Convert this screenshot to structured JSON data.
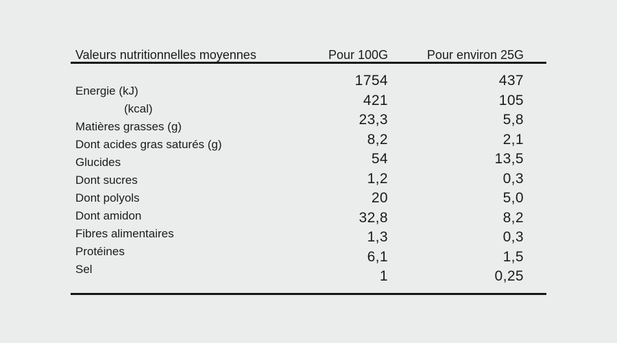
{
  "table": {
    "title": "Valeurs nutritionnelles moyennes",
    "header": {
      "label": "Valeurs nutritionnelles moyennes",
      "col_per_100": "Pour 100G",
      "col_per_25": "Pour environ 25G"
    },
    "rows": [
      {
        "label": "Energie (kJ)",
        "indent": false,
        "per_100": "1754",
        "per_25": "437"
      },
      {
        "label": "(kcal)",
        "indent": true,
        "per_100": "421",
        "per_25": "105"
      },
      {
        "label": "Matières grasses (g)",
        "indent": false,
        "per_100": "23,3",
        "per_25": "5,8"
      },
      {
        "label": "Dont acides gras saturés (g)",
        "indent": false,
        "per_100": "8,2",
        "per_25": "2,1"
      },
      {
        "label": "Glucides",
        "indent": false,
        "per_100": "54",
        "per_25": "13,5"
      },
      {
        "label": "Dont sucres",
        "indent": false,
        "per_100": "1,2",
        "per_25": "0,3"
      },
      {
        "label": "Dont polyols",
        "indent": false,
        "per_100": "20",
        "per_25": "5,0"
      },
      {
        "label": "Dont amidon",
        "indent": false,
        "per_100": "32,8",
        "per_25": "8,2"
      },
      {
        "label": "Fibres alimentaires",
        "indent": false,
        "per_100": "1,3",
        "per_25": "0,3"
      },
      {
        "label": "Protéines",
        "indent": false,
        "per_100": "6,1",
        "per_25": "1,5"
      },
      {
        "label": "Sel",
        "indent": false,
        "per_100": "1",
        "per_25": "0,25"
      }
    ],
    "colors": {
      "background": "#ebecec",
      "text": "#1b1b1d",
      "rule": "#161616"
    }
  }
}
